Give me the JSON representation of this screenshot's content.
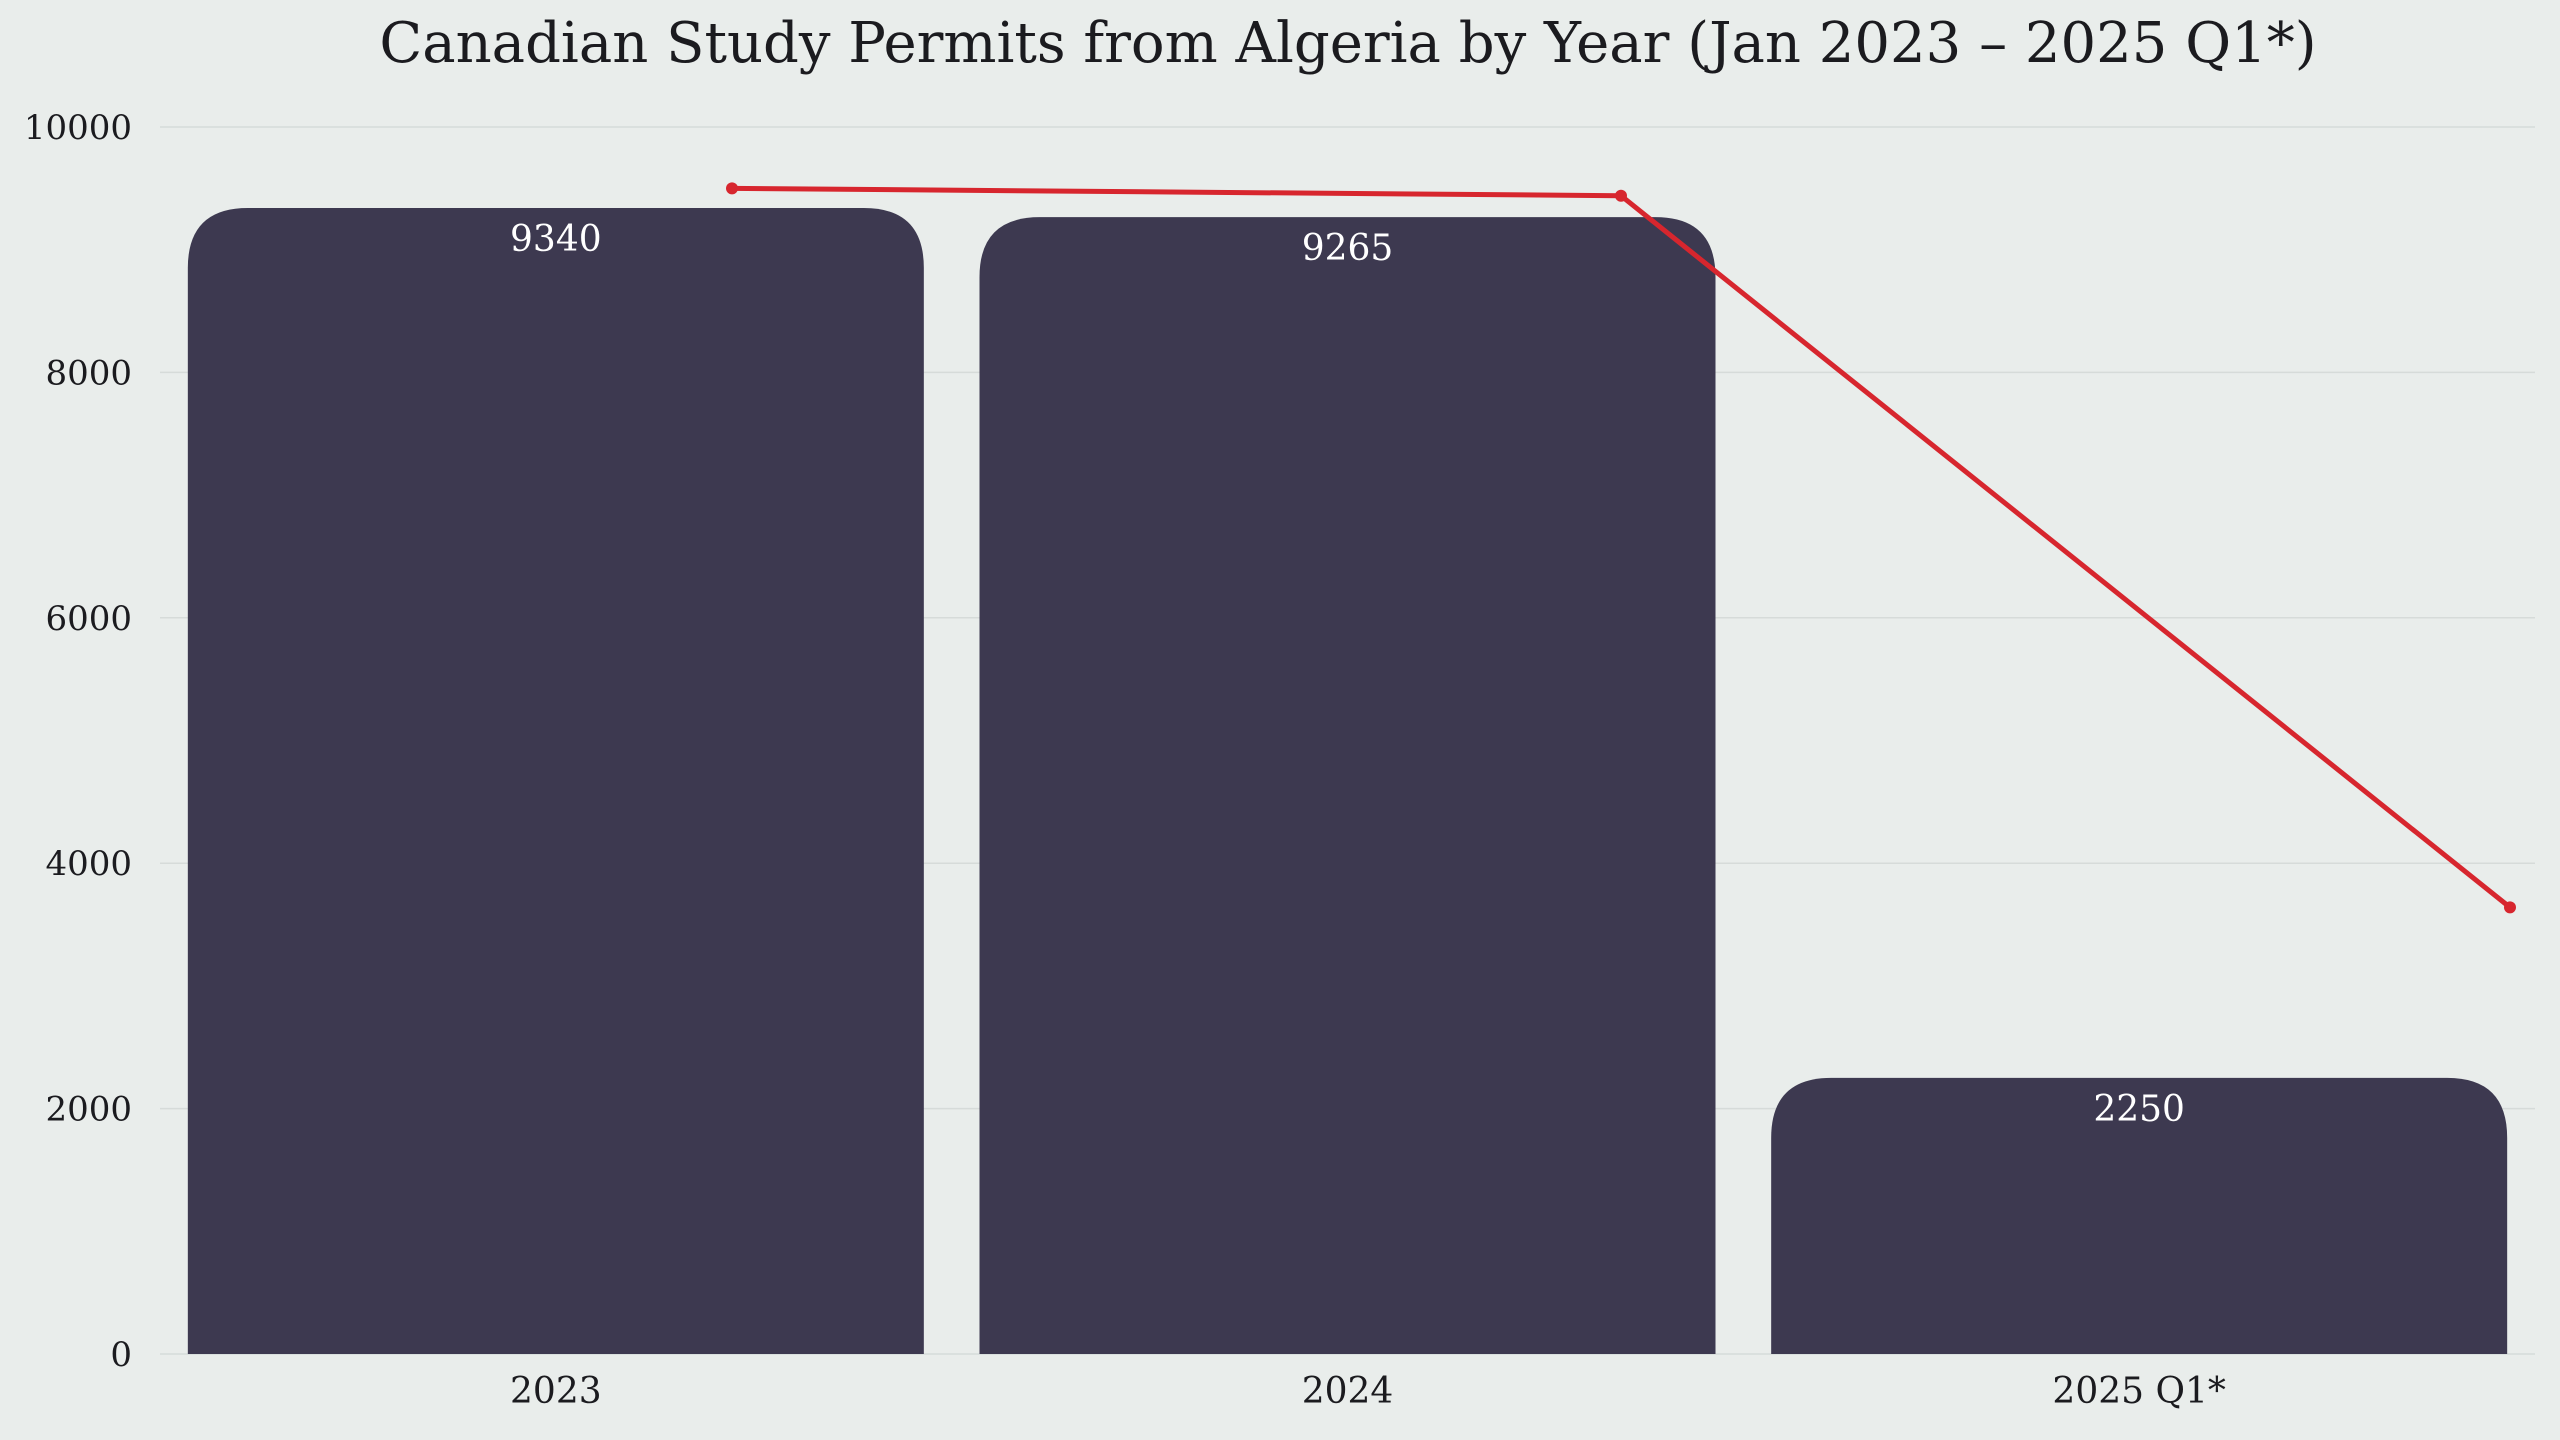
{
  "chart_data": {
    "type": "bar",
    "title": "Canadian Study Permits from Algeria by Year (Jan 2023 – 2025 Q1*)",
    "xlabel": "",
    "ylabel": "",
    "categories": [
      "2023",
      "2024",
      "2025 Q1*"
    ],
    "values": [
      9340,
      9265,
      2250
    ],
    "value_labels": [
      "9340",
      "9265",
      "2250"
    ],
    "ylim": [
      0,
      10000
    ],
    "yticks": [
      0,
      2000,
      4000,
      6000,
      8000,
      10000
    ],
    "ytick_labels": [
      "0",
      "2000",
      "4000",
      "6000",
      "8000",
      "10000"
    ],
    "grid": true,
    "trend_line": {
      "color": "#d7262e",
      "values": [
        9500,
        9440,
        3640
      ]
    },
    "colors": {
      "bar": "#3d3950",
      "background": "#e9edeb",
      "trend": "#d7262e"
    }
  }
}
